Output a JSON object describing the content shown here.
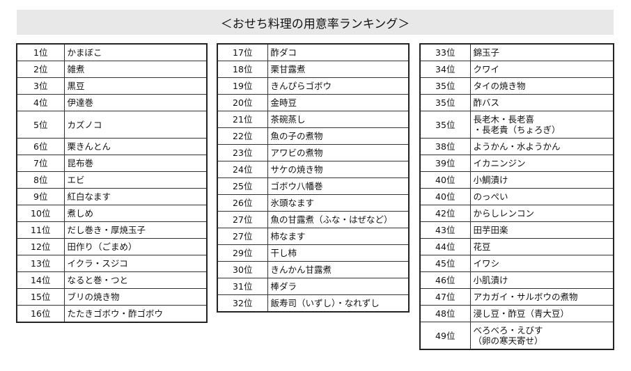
{
  "title": "＜おせち料理の用意率ランキング＞",
  "columns": [
    [
      {
        "rank": "1位",
        "item": "かまぼこ"
      },
      {
        "rank": "2位",
        "item": "雑煮"
      },
      {
        "rank": "3位",
        "item": "黒豆"
      },
      {
        "rank": "4位",
        "item": "伊達巻"
      },
      {
        "rank": "5位",
        "item": "カズノコ"
      },
      {
        "rank": "6位",
        "item": "栗きんとん"
      },
      {
        "rank": "7位",
        "item": "昆布巻"
      },
      {
        "rank": "8位",
        "item": "エビ"
      },
      {
        "rank": "9位",
        "item": "紅白なます"
      },
      {
        "rank": "10位",
        "item": "煮しめ"
      },
      {
        "rank": "11位",
        "item": "だし巻き・厚焼玉子"
      },
      {
        "rank": "12位",
        "item": "田作り（ごまめ）"
      },
      {
        "rank": "13位",
        "item": "イクラ・スジコ"
      },
      {
        "rank": "14位",
        "item": "なると巻・つと"
      },
      {
        "rank": "15位",
        "item": "ブリの焼き物"
      },
      {
        "rank": "16位",
        "item": "たたきゴボウ・酢ゴボウ"
      }
    ],
    [
      {
        "rank": "17位",
        "item": "酢ダコ"
      },
      {
        "rank": "18位",
        "item": "栗甘露煮"
      },
      {
        "rank": "19位",
        "item": "きんぴらゴボウ"
      },
      {
        "rank": "20位",
        "item": "金時豆"
      },
      {
        "rank": "21位",
        "item": "茶碗蒸し"
      },
      {
        "rank": "22位",
        "item": "魚の子の煮物"
      },
      {
        "rank": "23位",
        "item": "アワビの煮物"
      },
      {
        "rank": "24位",
        "item": "サケの焼き物"
      },
      {
        "rank": "25位",
        "item": "ゴボウ八幡巻"
      },
      {
        "rank": "26位",
        "item": "氷頭なます"
      },
      {
        "rank": "27位",
        "item": "魚の甘露煮（ふな・はぜなど）"
      },
      {
        "rank": "27位",
        "item": "柿なます"
      },
      {
        "rank": "29位",
        "item": "干し柿"
      },
      {
        "rank": "30位",
        "item": "きんかん甘露煮"
      },
      {
        "rank": "31位",
        "item": "棒ダラ"
      },
      {
        "rank": "32位",
        "item": "飯寿司（いずし）・なれずし"
      }
    ],
    [
      {
        "rank": "33位",
        "item": "錦玉子"
      },
      {
        "rank": "34位",
        "item": "クワイ"
      },
      {
        "rank": "35位",
        "item": "タイの焼き物"
      },
      {
        "rank": "35位",
        "item": "酢バス"
      },
      {
        "rank": "35位",
        "item": "長老木・長老喜\n・長老貴（ちょろぎ）"
      },
      {
        "rank": "38位",
        "item": "ようかん・水ようかん"
      },
      {
        "rank": "39位",
        "item": "イカニンジン"
      },
      {
        "rank": "40位",
        "item": "小鯛漬け"
      },
      {
        "rank": "40位",
        "item": "のっぺい"
      },
      {
        "rank": "42位",
        "item": "からしレンコン"
      },
      {
        "rank": "43位",
        "item": "田芋田楽"
      },
      {
        "rank": "44位",
        "item": "花豆"
      },
      {
        "rank": "45位",
        "item": "イワシ"
      },
      {
        "rank": "46位",
        "item": "小肌漬け"
      },
      {
        "rank": "47位",
        "item": "アカガイ・サルボウの煮物"
      },
      {
        "rank": "48位",
        "item": "浸し豆・酢豆（青大豆）"
      },
      {
        "rank": "49位",
        "item": "べろべろ・えびす\n（卵の寒天寄せ）"
      }
    ]
  ]
}
